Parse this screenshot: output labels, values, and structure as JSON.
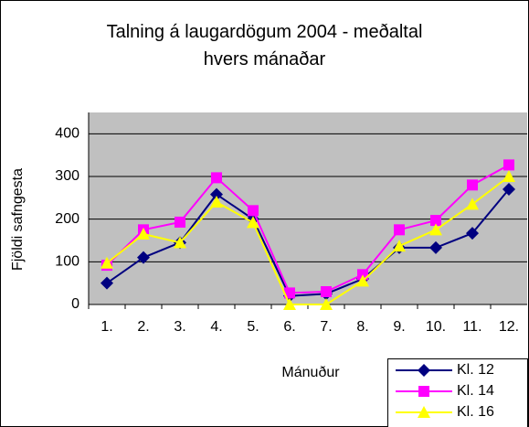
{
  "chart_data": {
    "type": "line",
    "title": "Talning á laugardögum 2004 - meðaltal\nhvers mánaðar",
    "xlabel": "Mánuður",
    "ylabel": "Fjöldi safngesta",
    "categories": [
      "1.",
      "2.",
      "3.",
      "4.",
      "5.",
      "6.",
      "7.",
      "8.",
      "9.",
      "10.",
      "11.",
      "12."
    ],
    "series": [
      {
        "name": "Kl. 12",
        "color": "#000080",
        "marker": "diamond",
        "values": [
          50,
          110,
          145,
          258,
          200,
          20,
          25,
          60,
          133,
          133,
          167,
          270
        ]
      },
      {
        "name": "Kl. 14",
        "color": "#ff00ff",
        "marker": "square",
        "values": [
          92,
          175,
          193,
          297,
          220,
          27,
          30,
          70,
          175,
          197,
          280,
          327
        ]
      },
      {
        "name": "Kl. 16",
        "color": "#ffff00",
        "marker": "triangle",
        "values": [
          97,
          165,
          145,
          240,
          192,
          0,
          0,
          55,
          137,
          175,
          235,
          300
        ]
      }
    ],
    "ylim": [
      0,
      450
    ],
    "yticks": [
      0,
      100,
      200,
      300,
      400
    ],
    "grid": true,
    "legend": "bottom-right"
  }
}
